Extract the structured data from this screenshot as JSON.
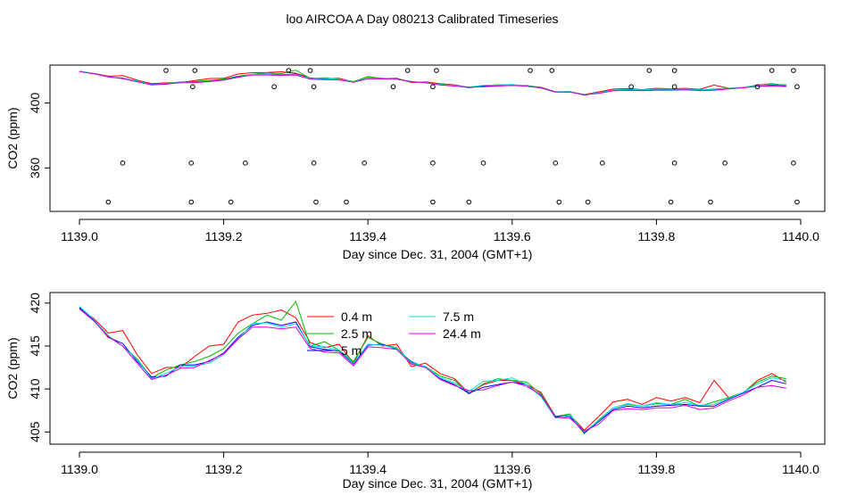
{
  "figure": {
    "title": "loo AIRCOA A  Day 080213  Calibrated Timeseries"
  },
  "chart_data": [
    {
      "type": "line",
      "panel": "top",
      "xlabel": "Day since Dec. 31, 2004 (GMT+1)",
      "ylabel": "CO2 (ppm)",
      "xlim": [
        1139.0,
        1140.0
      ],
      "ylim": [
        336,
        420
      ],
      "x_ticks": [
        1139.0,
        1139.2,
        1139.4,
        1139.6,
        1139.8,
        1140.0
      ],
      "x_tick_labels": [
        "1139.0",
        "1139.2",
        "1139.4",
        "1139.6",
        "1139.8",
        "1140.0"
      ],
      "y_ticks": [
        360,
        400
      ],
      "y_tick_labels": [
        "360",
        "400"
      ],
      "series_ref": "shared_series",
      "markers": {
        "style": "open-circle",
        "color": "#000000",
        "points": [
          [
            1139.04,
            339
          ],
          [
            1139.06,
            363
          ],
          [
            1139.12,
            420
          ],
          [
            1139.155,
            339
          ],
          [
            1139.155,
            363
          ],
          [
            1139.157,
            410
          ],
          [
            1139.16,
            420
          ],
          [
            1139.21,
            339
          ],
          [
            1139.23,
            363
          ],
          [
            1139.27,
            410
          ],
          [
            1139.29,
            420
          ],
          [
            1139.32,
            420
          ],
          [
            1139.325,
            363
          ],
          [
            1139.325,
            410
          ],
          [
            1139.328,
            339
          ],
          [
            1139.37,
            339
          ],
          [
            1139.395,
            363
          ],
          [
            1139.435,
            410
          ],
          [
            1139.455,
            420
          ],
          [
            1139.49,
            339
          ],
          [
            1139.49,
            363
          ],
          [
            1139.49,
            410
          ],
          [
            1139.495,
            420
          ],
          [
            1139.54,
            339
          ],
          [
            1139.56,
            363
          ],
          [
            1139.625,
            420
          ],
          [
            1139.655,
            420
          ],
          [
            1139.66,
            363
          ],
          [
            1139.665,
            339
          ],
          [
            1139.705,
            339
          ],
          [
            1139.725,
            363
          ],
          [
            1139.765,
            410
          ],
          [
            1139.79,
            420
          ],
          [
            1139.82,
            339
          ],
          [
            1139.825,
            363
          ],
          [
            1139.825,
            420
          ],
          [
            1139.825,
            410
          ],
          [
            1139.875,
            339
          ],
          [
            1139.895,
            363
          ],
          [
            1139.94,
            410
          ],
          [
            1139.96,
            420
          ],
          [
            1139.99,
            363
          ],
          [
            1139.99,
            420
          ],
          [
            1139.995,
            339
          ],
          [
            1139.995,
            410
          ]
        ]
      }
    },
    {
      "type": "line",
      "panel": "bottom",
      "xlabel": "Day since Dec. 31, 2004 (GMT+1)",
      "ylabel": "CO2 (ppm)",
      "xlim": [
        1139.0,
        1140.0
      ],
      "ylim": [
        404.2,
        420.6
      ],
      "x_ticks": [
        1139.0,
        1139.2,
        1139.4,
        1139.6,
        1139.8,
        1140.0
      ],
      "x_tick_labels": [
        "1139.0",
        "1139.2",
        "1139.4",
        "1139.6",
        "1139.8",
        "1140.0"
      ],
      "y_ticks": [
        405,
        410,
        415,
        420
      ],
      "y_tick_labels": [
        "405",
        "410",
        "415",
        "420"
      ],
      "legend": {
        "placement": "top-center",
        "entries": [
          {
            "label": "0.4 m",
            "color": "#ff0000"
          },
          {
            "label": "2.5 m",
            "color": "#00bb00"
          },
          {
            "label": "5 m",
            "color": "#0000ff"
          },
          {
            "label": "7.5 m",
            "color": "#00dddd"
          },
          {
            "label": "24.4 m",
            "color": "#dd00dd"
          }
        ]
      },
      "series_ref": "shared_series"
    }
  ],
  "shared_series": {
    "x": [
      1139.0,
      1139.02,
      1139.04,
      1139.06,
      1139.08,
      1139.1,
      1139.12,
      1139.14,
      1139.16,
      1139.18,
      1139.2,
      1139.22,
      1139.24,
      1139.26,
      1139.28,
      1139.3,
      1139.32,
      1139.34,
      1139.36,
      1139.38,
      1139.4,
      1139.42,
      1139.44,
      1139.46,
      1139.48,
      1139.5,
      1139.52,
      1139.54,
      1139.56,
      1139.58,
      1139.6,
      1139.62,
      1139.64,
      1139.66,
      1139.68,
      1139.7,
      1139.72,
      1139.74,
      1139.76,
      1139.78,
      1139.8,
      1139.82,
      1139.84,
      1139.86,
      1139.88,
      1139.9,
      1139.92,
      1139.94,
      1139.96,
      1139.98
    ],
    "series": [
      {
        "name": "0.4 m",
        "color": "#ff0000",
        "values": [
          419.4,
          418.2,
          416.5,
          416.8,
          414.0,
          411.8,
          412.5,
          412.5,
          413.8,
          415.0,
          415.2,
          417.8,
          418.6,
          418.8,
          419.2,
          418.3,
          415.4,
          414.8,
          415.2,
          413.0,
          416.2,
          415.0,
          415.2,
          412.6,
          413.0,
          411.8,
          411.2,
          409.5,
          410.5,
          411.0,
          411.0,
          410.5,
          409.6,
          406.8,
          407.0,
          405.2,
          406.8,
          408.5,
          408.8,
          408.2,
          409.0,
          408.6,
          409.0,
          408.4,
          411.0,
          409.0,
          409.5,
          411.0,
          411.8,
          410.8
        ]
      },
      {
        "name": "2.5 m",
        "color": "#00bb00",
        "values": [
          419.5,
          418.0,
          416.2,
          415.0,
          413.5,
          411.3,
          412.2,
          412.8,
          413.2,
          413.8,
          414.7,
          416.5,
          417.6,
          418.6,
          418.0,
          420.2,
          415.0,
          415.5,
          414.5,
          413.2,
          416.0,
          415.2,
          414.8,
          413.0,
          412.6,
          411.5,
          411.0,
          409.4,
          410.6,
          411.2,
          411.0,
          410.8,
          409.4,
          406.8,
          407.1,
          404.8,
          406.4,
          407.8,
          408.2,
          408.0,
          408.3,
          408.2,
          408.8,
          408.0,
          408.5,
          409.0,
          409.6,
          410.8,
          411.5,
          411.2
        ]
      },
      {
        "name": "5 m",
        "color": "#0000ff",
        "values": [
          419.5,
          418.0,
          416.0,
          415.3,
          413.2,
          411.4,
          411.5,
          412.8,
          412.8,
          413.2,
          414.2,
          416.0,
          417.4,
          417.8,
          417.4,
          417.8,
          414.9,
          414.6,
          414.4,
          412.9,
          415.1,
          415.2,
          414.6,
          413.2,
          412.5,
          411.2,
          410.5,
          409.5,
          410.2,
          410.5,
          410.8,
          410.5,
          409.2,
          406.8,
          406.8,
          404.9,
          406.2,
          407.6,
          408.0,
          407.8,
          408.0,
          408.1,
          408.2,
          408.0,
          408.0,
          408.8,
          409.5,
          410.2,
          411.0,
          410.6
        ]
      },
      {
        "name": "7.5 m",
        "color": "#00dddd",
        "values": [
          419.6,
          418.1,
          416.1,
          415.0,
          413.4,
          411.2,
          411.8,
          412.6,
          412.7,
          413.0,
          414.0,
          415.8,
          417.6,
          417.7,
          417.2,
          417.6,
          415.0,
          414.9,
          414.5,
          413.0,
          415.2,
          415.1,
          414.7,
          413.1,
          412.6,
          411.3,
          410.7,
          409.7,
          410.9,
          411.0,
          411.3,
          410.5,
          409.1,
          406.6,
          407.0,
          405.0,
          406.3,
          407.8,
          408.3,
          408.0,
          408.4,
          408.2,
          408.4,
          408.1,
          408.2,
          408.9,
          409.6,
          410.6,
          411.3,
          411.0
        ]
      },
      {
        "name": "24.4 m",
        "color": "#dd00dd",
        "values": [
          419.3,
          417.9,
          416.1,
          415.0,
          413.0,
          411.1,
          411.6,
          412.4,
          412.5,
          413.3,
          414.1,
          415.8,
          417.2,
          417.2,
          417.0,
          417.2,
          414.7,
          414.3,
          414.2,
          412.7,
          414.9,
          414.8,
          414.6,
          412.9,
          412.5,
          411.1,
          410.4,
          409.8,
          409.9,
          410.4,
          410.8,
          410.3,
          409.3,
          406.7,
          406.6,
          405.1,
          405.9,
          407.5,
          407.7,
          407.6,
          407.8,
          407.8,
          408.1,
          407.6,
          407.8,
          408.6,
          409.3,
          410.2,
          410.4,
          410.1
        ]
      }
    ]
  }
}
